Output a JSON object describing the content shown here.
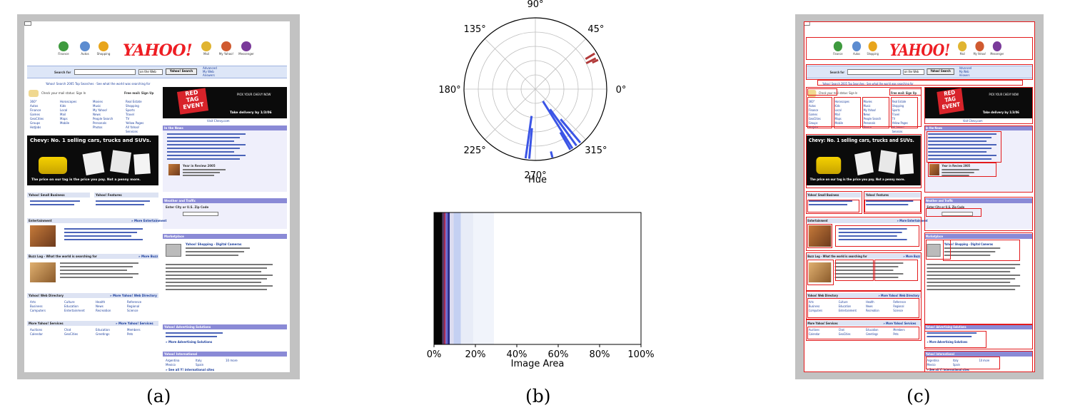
{
  "figure": {
    "captions": {
      "a": "(a)",
      "b": "(b)",
      "c": "(c)"
    }
  },
  "yahoo_page": {
    "top_icons": [
      "Finance",
      "Autos",
      "Shopping",
      "Mail",
      "My Yahoo!",
      "Messenger"
    ],
    "logo": "YAHOO!",
    "search": {
      "label": "Search for",
      "scope": "on the Web",
      "button": "Yahoo! Search",
      "side_links": [
        "Advanced",
        "My Web",
        "Answers"
      ]
    },
    "search_promo": "Yahoo! Search 2005 Top Searches · See what the world was searching for",
    "mail_status": "Check your mail status: Sign In",
    "mail_links": "Free mail: Sign Up",
    "nav_col1": [
      "360°",
      "Autos",
      "Finance",
      "Games",
      "GeoCities",
      "Groups",
      "HotJobs"
    ],
    "nav_col2": [
      "Horoscopes",
      "Kids",
      "Local",
      "Mail",
      "Maps",
      "Mobile"
    ],
    "nav_col3": [
      "Movies",
      "Music",
      "My Yahoo!",
      "News",
      "People Search",
      "Personals",
      "Photos"
    ],
    "nav_col4": [
      "Real Estate",
      "Shopping",
      "Sports",
      "Travel",
      "TV",
      "Yellow Pages",
      "All Yahoo!",
      "Services"
    ],
    "redtag_ad": {
      "line1": "RED",
      "line2": "TAG",
      "line3": "EVENT",
      "side_text": "PICK YOUR CHEVY NOW",
      "footer": "Take delivery by 1/3/06",
      "link": "Visit Chevy.com"
    },
    "chevy_banner": {
      "headline": "Chevy: No. 1 selling cars, trucks and SUVs.",
      "footer": "The price on our tag is the price you pay. Not a penny more."
    },
    "sections": {
      "in_the_news": "In the News",
      "weather": "Weather and Traffic",
      "marketplace": "Marketplace",
      "small_business": "Yahoo! Small Business",
      "features": "Yahoo! Features",
      "entertainment": "Entertainment",
      "buzz_log": "Buzz Log - What the world is searching for",
      "web_directory": "Yahoo! Web Directory",
      "more_yahoo": "More Yahoo! Services",
      "advertising": "Yahoo! Advertising Solutions",
      "international": "Yahoo! International"
    },
    "links": {
      "more_entertainment": "» More Entertainment",
      "more_buzz": "» More Buzz",
      "more_directory": "» More Yahoo! Web Directory",
      "more_services": "» More Yahoo! Services",
      "more_advertising": "» More Advertising Solutions",
      "intl_sites": "» See all Y! international sites"
    },
    "year_in_review": "Year in Review 2005",
    "weather_hint": "Enter City or U.S. Zip Code",
    "marketplace_title": "Yahoo! Shopping - Digital Cameras",
    "directory_cols": [
      [
        "Arts",
        "Business",
        "Computers"
      ],
      [
        "Culture",
        "Education",
        "Entertainment"
      ],
      [
        "Health",
        "News",
        "Recreation"
      ],
      [
        "Reference",
        "Regional",
        "Science"
      ]
    ],
    "more_yahoo_cols": [
      [
        "Auctions",
        "Calendar"
      ],
      [
        "Chat",
        "GeoCities"
      ],
      [
        "Education",
        "Greetings"
      ],
      [
        "Members",
        "Pets"
      ]
    ],
    "intl_cols": [
      [
        "Argentina",
        "Mexico"
      ],
      [
        "Italy",
        "Spain"
      ],
      [
        "10 more"
      ]
    ],
    "colors": {
      "yahoo_red": "#ee1d23",
      "section_purple": "#8a8ad6",
      "link_blue": "#1a3d9c"
    }
  },
  "chart_data": [
    {
      "type": "polar-histogram",
      "xlabel": "Hue",
      "theta_ticks": [
        "0°",
        "45°",
        "90°",
        "135°",
        "180°",
        "225°",
        "270°",
        "315°"
      ],
      "theta_tick_degrees": [
        0,
        45,
        90,
        135,
        180,
        225,
        270,
        315
      ],
      "radial_rings": 5,
      "grid": true,
      "bars": [
        {
          "angle_deg": 27,
          "r_from": 0.8,
          "r_to": 0.95,
          "color": "#b23a3a"
        },
        {
          "angle_deg": 31,
          "r_from": 0.82,
          "r_to": 0.97,
          "color": "#b23a3a"
        },
        {
          "angle_deg": 25,
          "r_from": 0.88,
          "r_to": 0.97,
          "color": "#b23a3a"
        },
        {
          "angle_deg": 262,
          "r_from": 0.38,
          "r_to": 0.98,
          "color": "#3b55e6"
        },
        {
          "angle_deg": 265,
          "r_from": 0.55,
          "r_to": 0.98,
          "color": "#3b55e6"
        },
        {
          "angle_deg": 302,
          "r_from": 0.2,
          "r_to": 0.98,
          "color": "#3b55e6"
        },
        {
          "angle_deg": 306,
          "r_from": 0.35,
          "r_to": 0.98,
          "color": "#3b55e6"
        },
        {
          "angle_deg": 310,
          "r_from": 0.55,
          "r_to": 0.98,
          "color": "#3b55e6"
        },
        {
          "angle_deg": 300,
          "r_from": 0.7,
          "r_to": 0.98,
          "color": "#3b55e6"
        },
        {
          "angle_deg": 284,
          "r_from": 0.9,
          "r_to": 0.99,
          "color": "#3b55e6"
        }
      ]
    },
    {
      "type": "stacked-color-bar",
      "xlabel": "Image Area",
      "x_ticks": [
        "0%",
        "20%",
        "40%",
        "60%",
        "80%",
        "100%"
      ],
      "x_tick_values": [
        0,
        20,
        40,
        60,
        80,
        100
      ],
      "xlim": [
        0,
        100
      ],
      "segments": [
        {
          "from": 0,
          "to": 4.0,
          "color": "#050505"
        },
        {
          "from": 4.0,
          "to": 5.0,
          "color": "#5a3a6a"
        },
        {
          "from": 5.0,
          "to": 5.6,
          "color": "#c2264a"
        },
        {
          "from": 5.6,
          "to": 6.6,
          "color": "#6a6ad0"
        },
        {
          "from": 6.6,
          "to": 7.6,
          "color": "#2a2a8a"
        },
        {
          "from": 7.6,
          "to": 9.5,
          "color": "#dcdcf0"
        },
        {
          "from": 9.5,
          "to": 13.0,
          "color": "#c4d0f2"
        },
        {
          "from": 13.0,
          "to": 19.0,
          "color": "#e8ecf7"
        },
        {
          "from": 19.0,
          "to": 29.0,
          "color": "#f1f4fb"
        },
        {
          "from": 29.0,
          "to": 100,
          "color": "#ffffff"
        }
      ]
    }
  ]
}
